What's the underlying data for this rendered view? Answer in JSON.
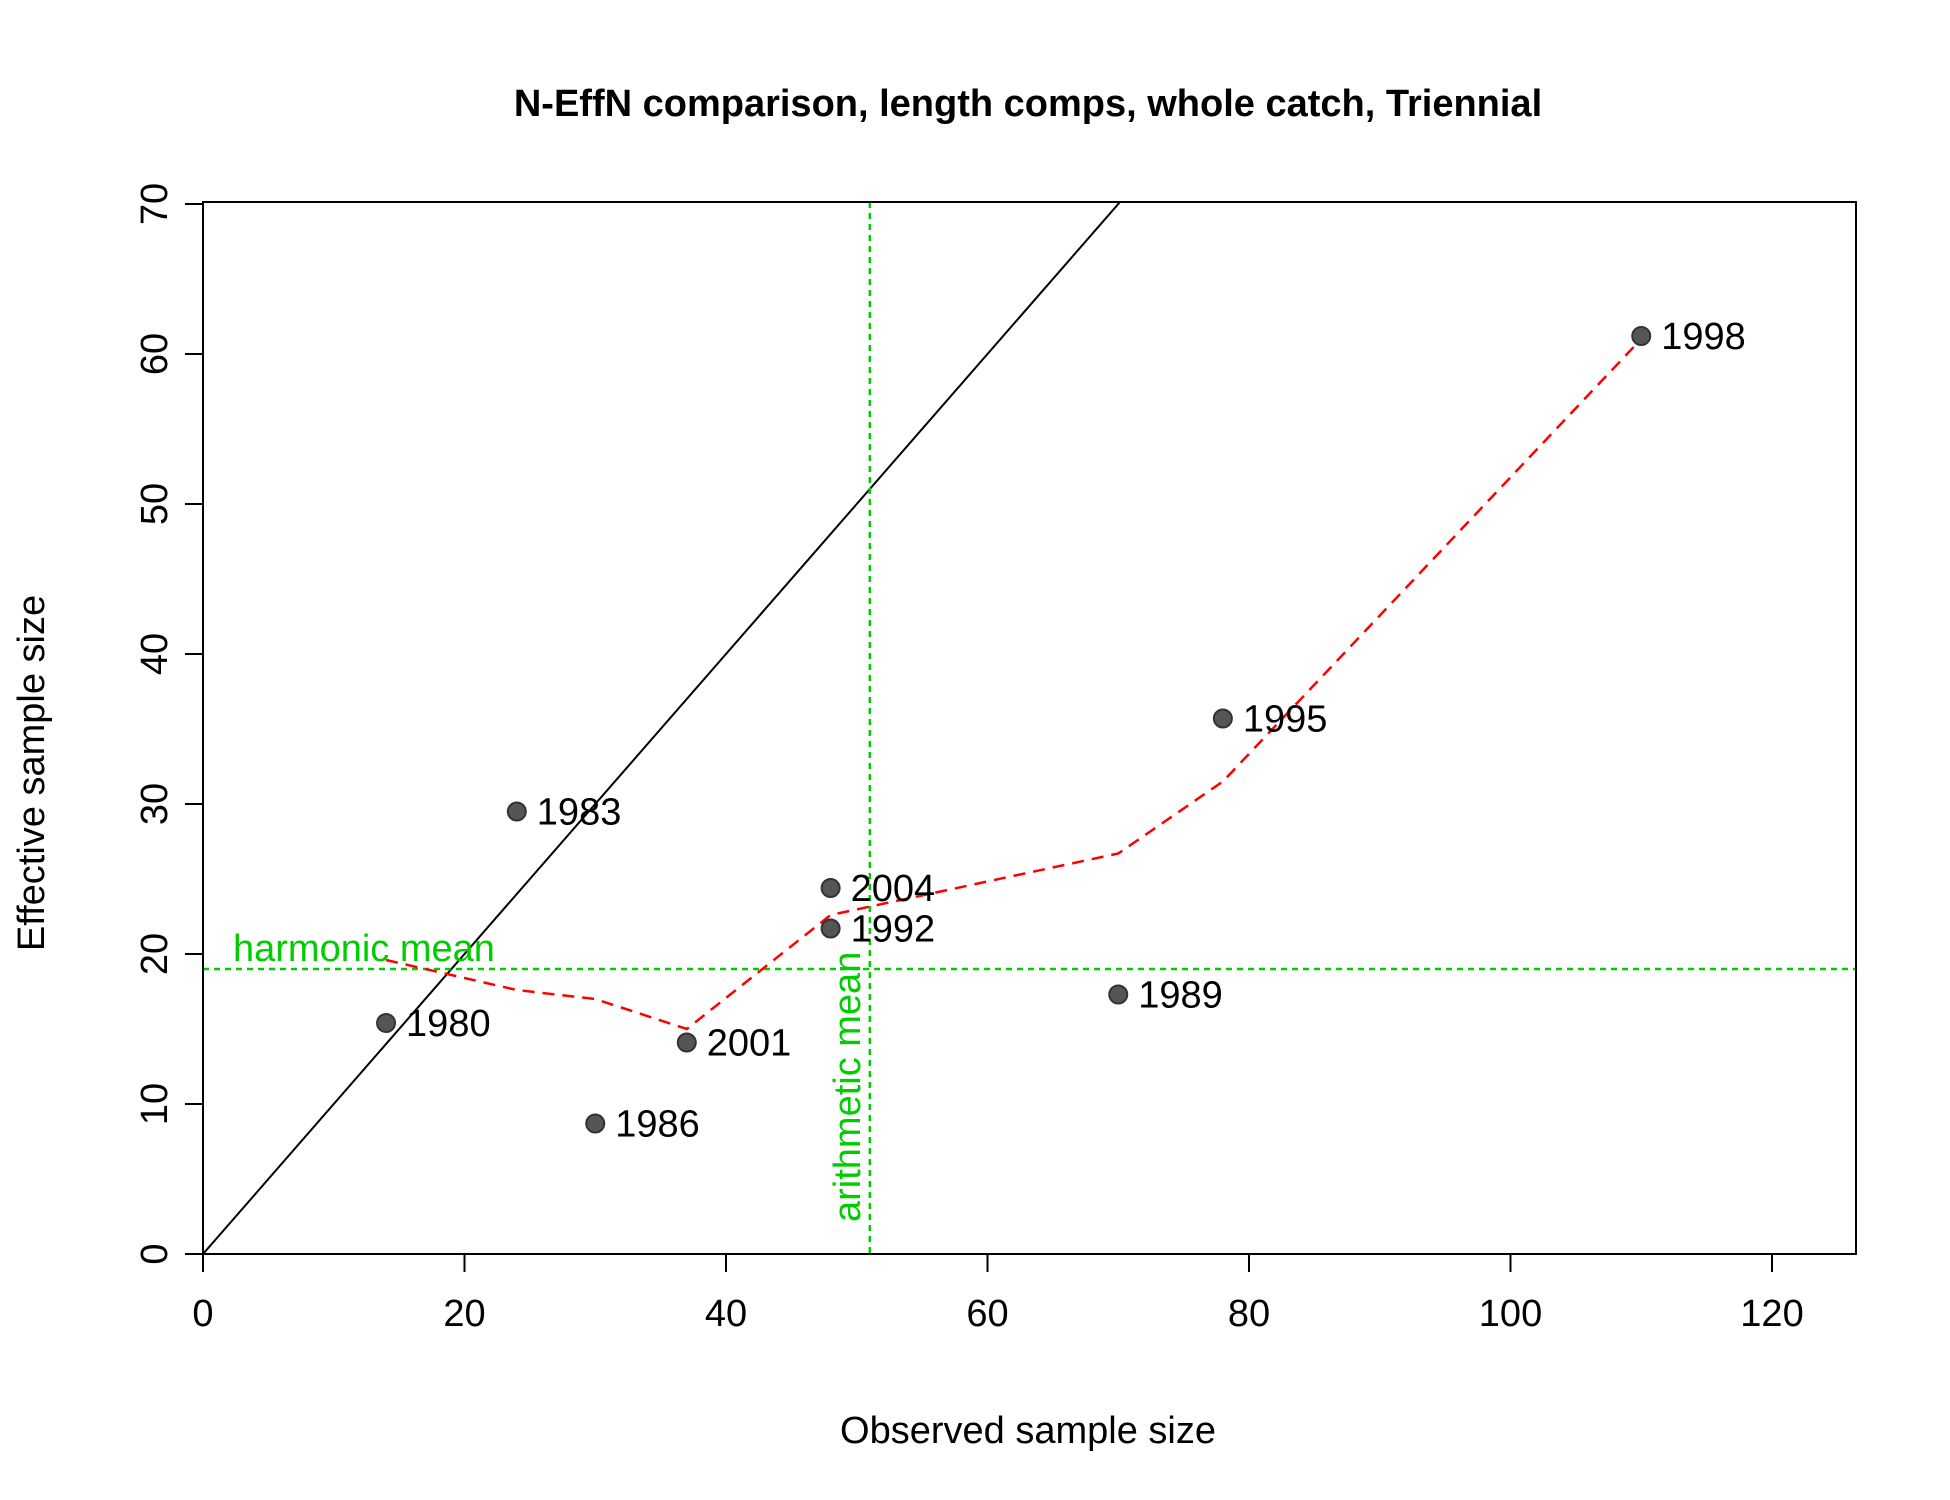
{
  "chart_data": {
    "type": "scatter",
    "title": "N-EffN comparison, length comps, whole catch, Triennial",
    "xlabel": "Observed sample size",
    "ylabel": "Effective sample size",
    "xlim": [
      0,
      126
    ],
    "ylim": [
      0,
      70
    ],
    "x_ticks": [
      "0",
      "20",
      "40",
      "60",
      "80",
      "100",
      "120"
    ],
    "y_ticks": [
      "0",
      "10",
      "20",
      "30",
      "40",
      "50",
      "60",
      "70"
    ],
    "grid": false,
    "points": [
      {
        "label": "1980",
        "x": 14,
        "y": 15.4
      },
      {
        "label": "1983",
        "x": 24,
        "y": 29.5
      },
      {
        "label": "1986",
        "x": 30,
        "y": 8.7
      },
      {
        "label": "1989",
        "x": 70,
        "y": 17.3
      },
      {
        "label": "1992",
        "x": 48,
        "y": 21.7
      },
      {
        "label": "1995",
        "x": 78,
        "y": 35.7
      },
      {
        "label": "1998",
        "x": 110,
        "y": 61.2
      },
      {
        "label": "2001",
        "x": 37,
        "y": 14.1
      },
      {
        "label": "2004",
        "x": 48,
        "y": 24.4
      }
    ],
    "smoother": [
      [
        14,
        19.6
      ],
      [
        24,
        17.6
      ],
      [
        30,
        17.0
      ],
      [
        37,
        15.0
      ],
      [
        48,
        22.6
      ],
      [
        70,
        26.7
      ],
      [
        78,
        31.5
      ],
      [
        110,
        61.0
      ]
    ],
    "identity_line": {
      "slope": 1,
      "intercept": 0
    },
    "harmonic_mean": {
      "value": 19.0,
      "label": "harmonic mean"
    },
    "arithmetic_mean": {
      "value": 51.0,
      "label": "arithmetic mean"
    },
    "colors": {
      "points": "#555555",
      "smoother": "#ff0000",
      "means": "#00cd00",
      "axes": "#000000"
    }
  }
}
